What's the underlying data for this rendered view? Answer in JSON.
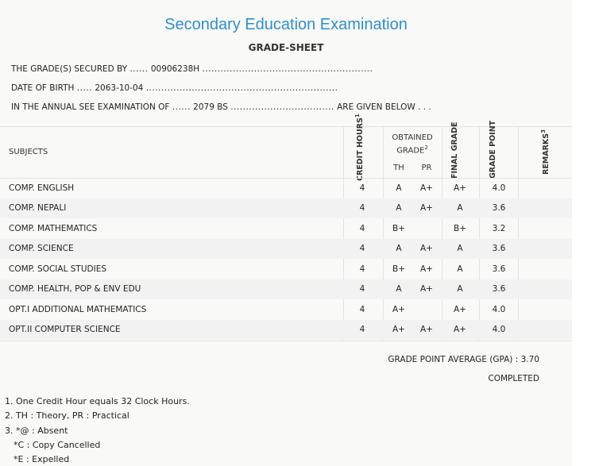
{
  "header": {
    "title": "Secondary Education Examination",
    "subtitle": "GRADE-SHEET"
  },
  "info": {
    "grades_label": "THE GRADE(S) SECURED BY",
    "grades_lead_dots": "......",
    "symbol_no": "00906238H",
    "grades_trail_dots": "........................................................",
    "dob_label": "DATE OF BIRTH",
    "dob_lead_dots": ".....",
    "dob": "2063-10-04",
    "dob_trail_dots": "...............................................................",
    "exam_label": "IN THE ANNUAL SEE EXAMINATION OF",
    "exam_lead_dots": "......",
    "exam_year": "2079 BS",
    "exam_mid_dots": "..................................",
    "given_below": "ARE GIVEN BELOW . . ."
  },
  "table": {
    "headers": {
      "subjects": "SUBJECTS",
      "credit_hours": "CREDIT HOURS",
      "credit_sup": "1",
      "obtained_grade": "OBTAINED GRADE",
      "obtained_sup": "2",
      "th": "TH",
      "pr": "PR",
      "final_grade": "FINAL GRADE",
      "grade_point": "GRADE POINT",
      "remarks": "REMARKS",
      "remarks_sup": "3"
    },
    "rows": [
      {
        "subject": "COMP. ENGLISH",
        "credit": "4",
        "th": "A",
        "pr": "A+",
        "final": "A+",
        "gp": "4.0"
      },
      {
        "subject": "COMP. NEPALI",
        "credit": "4",
        "th": "A",
        "pr": "A+",
        "final": "A",
        "gp": "3.6"
      },
      {
        "subject": "COMP. MATHEMATICS",
        "credit": "4",
        "th": "B+",
        "pr": "",
        "final": "B+",
        "gp": "3.2"
      },
      {
        "subject": "COMP. SCIENCE",
        "credit": "4",
        "th": "A",
        "pr": "A+",
        "final": "A",
        "gp": "3.6"
      },
      {
        "subject": "COMP. SOCIAL STUDIES",
        "credit": "4",
        "th": "B+",
        "pr": "A+",
        "final": "A",
        "gp": "3.6"
      },
      {
        "subject": "COMP. HEALTH, POP & ENV EDU",
        "credit": "4",
        "th": "A",
        "pr": "A+",
        "final": "A",
        "gp": "3.6"
      },
      {
        "subject": "OPT.I ADDITIONAL MATHEMATICS",
        "credit": "4",
        "th": "A+",
        "pr": "",
        "final": "A+",
        "gp": "4.0"
      },
      {
        "subject": "OPT.II COMPUTER SCIENCE",
        "credit": "4",
        "th": "A+",
        "pr": "A+",
        "final": "A+",
        "gp": "4.0"
      }
    ]
  },
  "summary": {
    "gpa": "GRADE POINT AVERAGE (GPA) : 3.70",
    "status": "COMPLETED"
  },
  "notes": [
    "1. One Credit Hour equals 32 Clock Hours.",
    "2. TH : Theory, PR : Practical",
    "3. *@ : Absent",
    "*C : Copy Cancelled",
    "*E : Expelled"
  ]
}
